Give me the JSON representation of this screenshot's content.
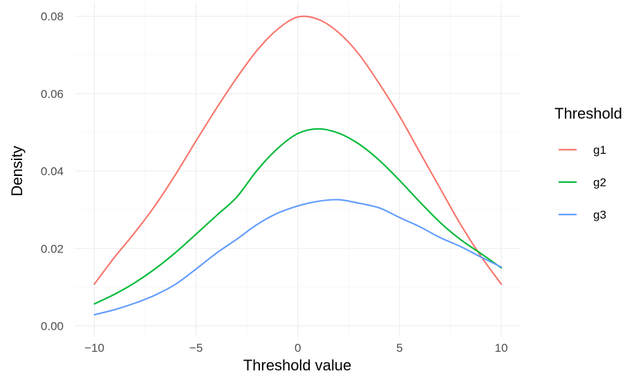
{
  "chart_data": {
    "type": "line",
    "title": "",
    "xlabel": "Threshold value",
    "ylabel": "Density",
    "xlim": [
      -10,
      10
    ],
    "ylim": [
      0,
      0.08
    ],
    "x_ticks": [
      -10,
      -5,
      0,
      5,
      10
    ],
    "x_tick_labels": [
      "−10",
      "−5",
      "0",
      "5",
      "10"
    ],
    "y_ticks": [
      0.0,
      0.02,
      0.04,
      0.06,
      0.08
    ],
    "y_tick_labels": [
      "0.00",
      "0.02",
      "0.04",
      "0.06",
      "0.08"
    ],
    "grid": true,
    "legend": {
      "title": "Threshold",
      "position": "right"
    },
    "series": [
      {
        "name": "g1",
        "color": "#F8766D",
        "x": [
          -10,
          -9,
          -8,
          -7,
          -6,
          -5,
          -4,
          -3,
          -2,
          -1,
          0,
          1,
          2,
          3,
          4,
          5,
          6,
          7,
          8,
          9,
          10
        ],
        "y": [
          0.0108,
          0.0178,
          0.0242,
          0.0312,
          0.0392,
          0.0478,
          0.0562,
          0.0641,
          0.0712,
          0.0766,
          0.0798,
          0.0792,
          0.0758,
          0.0702,
          0.0626,
          0.0542,
          0.0448,
          0.0355,
          0.0262,
          0.018,
          0.0108
        ]
      },
      {
        "name": "g2",
        "color": "#00BA38",
        "x": [
          -10,
          -9,
          -8,
          -7,
          -6,
          -5,
          -4,
          -3,
          -2,
          -1,
          0,
          1,
          2,
          3,
          4,
          5,
          6,
          7,
          8,
          9,
          10
        ],
        "y": [
          0.0057,
          0.0082,
          0.0112,
          0.0148,
          0.019,
          0.0237,
          0.0285,
          0.0333,
          0.0402,
          0.0458,
          0.0497,
          0.0509,
          0.0498,
          0.047,
          0.0428,
          0.0376,
          0.032,
          0.0267,
          0.0223,
          0.0187,
          0.015
        ]
      },
      {
        "name": "g3",
        "color": "#619CFF",
        "x": [
          -10,
          -9,
          -8,
          -7,
          -6,
          -5,
          -4,
          -3,
          -2,
          -1,
          0,
          1,
          2,
          3,
          4,
          5,
          6,
          7,
          8,
          9,
          10
        ],
        "y": [
          0.0029,
          0.0042,
          0.0059,
          0.008,
          0.0108,
          0.0147,
          0.0188,
          0.0224,
          0.0262,
          0.0291,
          0.031,
          0.0322,
          0.0326,
          0.0317,
          0.0305,
          0.028,
          0.0256,
          0.0228,
          0.0205,
          0.0178,
          0.0152
        ]
      }
    ]
  }
}
